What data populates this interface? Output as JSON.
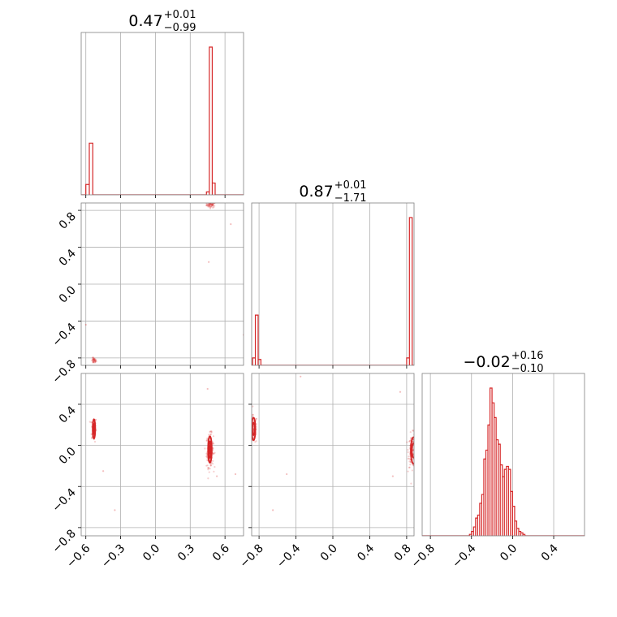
{
  "chart_data": {
    "type": "corner",
    "color": "#d62728",
    "grid": true,
    "titles": [
      {
        "value": "0.47",
        "plus": "+0.01",
        "minus": "−0.99"
      },
      {
        "value": "0.87",
        "plus": "+0.01",
        "minus": "−1.71"
      },
      {
        "value": "−0.02",
        "plus": "+0.16",
        "minus": "−0.10"
      }
    ],
    "params": [
      {
        "range": [
          -0.64,
          0.76
        ],
        "ticks": [
          -0.6,
          -0.3,
          0.0,
          0.3,
          0.6
        ],
        "tick_labels": [
          "−0.6",
          "−0.3",
          "0.0",
          "0.3",
          "0.6"
        ]
      },
      {
        "range": [
          -0.88,
          0.88
        ],
        "ticks": [
          -0.8,
          -0.4,
          0.0,
          0.4,
          0.8
        ],
        "tick_labels": [
          "−0.8",
          "−0.4",
          "0.0",
          "0.4",
          "0.8"
        ]
      },
      {
        "range": [
          -0.88,
          0.7
        ],
        "ticks": [
          -0.8,
          -0.4,
          0.0,
          0.4
        ],
        "tick_labels": [
          "−0.8",
          "−0.4",
          "0.0",
          "0.4"
        ]
      }
    ],
    "hist1": [
      {
        "x0": -0.6,
        "x1": -0.57,
        "h": 0.07
      },
      {
        "x0": -0.57,
        "x1": -0.54,
        "h": 0.35
      },
      {
        "x0": -0.54,
        "x1": -0.51,
        "h": 0.0
      },
      {
        "x0": 0.44,
        "x1": 0.465,
        "h": 0.02
      },
      {
        "x0": 0.465,
        "x1": 0.49,
        "h": 1.0
      },
      {
        "x0": 0.49,
        "x1": 0.515,
        "h": 0.08
      }
    ],
    "hist2": [
      {
        "x0": -0.87,
        "x1": -0.84,
        "h": 0.05
      },
      {
        "x0": -0.84,
        "x1": -0.81,
        "h": 0.34
      },
      {
        "x0": -0.81,
        "x1": -0.78,
        "h": 0.04
      },
      {
        "x0": -0.78,
        "x1": -0.75,
        "h": 0.0
      },
      {
        "x0": 0.77,
        "x1": 0.8,
        "h": 0.0
      },
      {
        "x0": 0.8,
        "x1": 0.83,
        "h": 0.05
      },
      {
        "x0": 0.83,
        "x1": 0.86,
        "h": 1.0
      }
    ],
    "hist3": {
      "bin_start": -0.42,
      "bin_width": 0.02,
      "heights": [
        0.01,
        0.03,
        0.06,
        0.12,
        0.14,
        0.22,
        0.28,
        0.52,
        0.58,
        0.75,
        1.0,
        0.9,
        0.8,
        0.65,
        0.62,
        0.48,
        0.4,
        0.45,
        0.47,
        0.45,
        0.3,
        0.2,
        0.1,
        0.05,
        0.03,
        0.02,
        0.01
      ]
    },
    "panel_21": {
      "clusters": [
        {
          "x": 0.48,
          "y": 0.86,
          "sx": 0.02,
          "sy": 0.015,
          "n": 60
        },
        {
          "x": -0.53,
          "y": -0.83,
          "sx": 0.01,
          "sy": 0.015,
          "n": 40
        }
      ],
      "outliers": [
        [
          0.46,
          0.24
        ],
        [
          0.76,
          -0.55
        ],
        [
          0.65,
          0.65
        ],
        [
          -0.6,
          -0.44
        ]
      ]
    },
    "panel_31": {
      "clusters": [
        {
          "x": -0.53,
          "y": 0.16,
          "sx": 0.01,
          "sy": 0.06,
          "n": 80
        },
        {
          "x": 0.47,
          "y": -0.05,
          "sx": 0.015,
          "sy": 0.08,
          "n": 160
        }
      ],
      "outliers": [
        [
          -0.45,
          -0.25
        ],
        [
          -0.35,
          -0.63
        ],
        [
          0.45,
          0.55
        ],
        [
          0.69,
          -0.28
        ],
        [
          0.53,
          -0.3
        ]
      ],
      "contours": [
        {
          "x": -0.53,
          "y": 0.16,
          "rx": 0.011,
          "ry": 0.095
        },
        {
          "x": -0.53,
          "y": 0.16,
          "rx": 0.006,
          "ry": 0.05
        },
        {
          "x": 0.47,
          "y": -0.04,
          "rx": 0.016,
          "ry": 0.13
        },
        {
          "x": 0.47,
          "y": -0.04,
          "rx": 0.01,
          "ry": 0.08
        },
        {
          "x": 0.47,
          "y": -0.04,
          "rx": 0.005,
          "ry": 0.04
        }
      ]
    },
    "panel_32": {
      "clusters": [
        {
          "x": -0.86,
          "y": 0.15,
          "sx": 0.02,
          "sy": 0.07,
          "n": 80
        },
        {
          "x": 0.86,
          "y": -0.05,
          "sx": 0.02,
          "sy": 0.08,
          "n": 130
        }
      ],
      "outliers": [
        [
          -0.35,
          0.67
        ],
        [
          -0.5,
          -0.28
        ],
        [
          -0.65,
          -0.63
        ],
        [
          0.73,
          0.52
        ],
        [
          0.65,
          -0.3
        ]
      ],
      "contours": [
        {
          "x": -0.86,
          "y": 0.16,
          "rx": 0.02,
          "ry": 0.11
        },
        {
          "x": -0.86,
          "y": 0.16,
          "rx": 0.012,
          "ry": 0.06
        },
        {
          "x": 0.875,
          "y": -0.05,
          "rx": 0.03,
          "ry": 0.13
        },
        {
          "x": 0.875,
          "y": -0.05,
          "rx": 0.018,
          "ry": 0.07
        }
      ]
    }
  }
}
